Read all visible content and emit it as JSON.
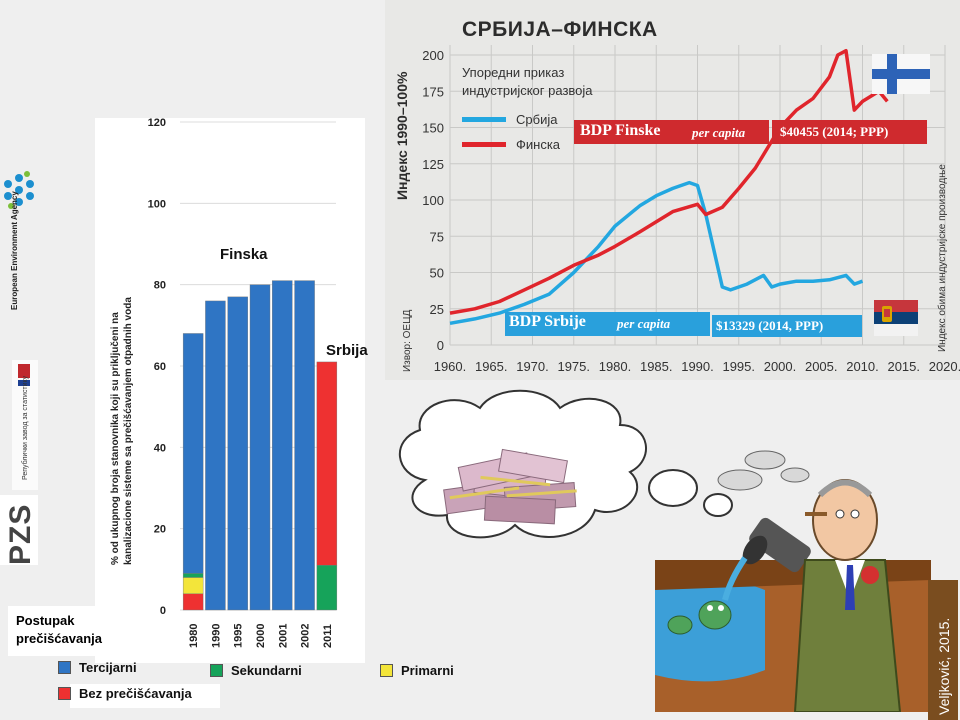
{
  "left_panel": {
    "eea_label": "European Environment Agency",
    "rzs_label": "Републички завод за статистику",
    "pzs_logo": "PZS"
  },
  "bar_chart_texts": {
    "finska_label": "Finska",
    "srbija_label": "Srbija",
    "legend_title": "Postupak prečišćavanja",
    "legend": {
      "tercijarni": "Tercijarni",
      "sekundarni": "Sekundarni",
      "primarni": "Primarni",
      "bez": "Bez prečišćavanja"
    }
  },
  "line_chart_texts": {
    "title": "СРБИЈА–ФИНСКА",
    "subtitle_line1": "Упоредни приказ",
    "subtitle_line2": "индустријског развоја",
    "legend_serbia": "Србија",
    "legend_finland": "Финска",
    "ylabel": "Индекс 1990–100%",
    "right_label": "Индекс обима индустријске производње",
    "source": "Извор: ОЕЦД",
    "bdp_finland_label": "BDP Finske",
    "bdp_finland_pc": "per capita",
    "bdp_finland_value": "$40455 (2014; PPP)",
    "bdp_serbia_label": "BDP Srbije",
    "bdp_serbia_pc": "per capita",
    "bdp_serbia_value": "$13329 (2014, PPP)"
  },
  "cartoon": {
    "credit": "Veljković, 2015."
  },
  "colors": {
    "tercijarni": "#2f75c4",
    "sekundarni": "#16a35a",
    "primarni": "#f3e53a",
    "bez": "#ee3131",
    "serbia_line": "#23a7e0",
    "finland_line": "#e0252c"
  },
  "chart_data": [
    {
      "type": "bar",
      "ylabel": "% od ukupnog broja stanovnika koji su priključeni na kanalizacione sisteme sa prečišćavanjem otpadnih voda",
      "ylim": [
        0,
        120
      ],
      "yticks": [
        0,
        20,
        40,
        60,
        80,
        100,
        120
      ],
      "categories": [
        "1980",
        "1990",
        "1995",
        "2000",
        "2001",
        "2002",
        "2011"
      ],
      "groups": [
        "Finska",
        "Finska",
        "Finska",
        "Finska",
        "Finska",
        "Finska",
        "Srbija"
      ],
      "series": [
        {
          "name": "Bez prečišćavanja",
          "values": [
            4,
            0,
            0,
            0,
            0,
            0,
            0
          ]
        },
        {
          "name": "Primarni",
          "values": [
            4,
            0,
            0,
            0,
            0,
            0,
            0
          ]
        },
        {
          "name": "Sekundarni",
          "values": [
            1,
            0,
            0,
            0,
            0,
            0,
            11
          ]
        },
        {
          "name": "Tercijarni",
          "values": [
            59,
            76,
            77,
            80,
            81,
            81,
            0
          ]
        },
        {
          "name": "Bez prečišćavanja",
          "values": [
            0,
            0,
            0,
            0,
            0,
            0,
            50
          ]
        }
      ]
    },
    {
      "type": "line",
      "title": "СРБИЈА–ФИНСКА",
      "ylabel": "Индекс 1990–100%",
      "xlim": [
        1960,
        2020
      ],
      "ylim": [
        0,
        200
      ],
      "xticks": [
        1960,
        1965,
        1970,
        1975,
        1980,
        1985,
        1990,
        1995,
        2000,
        2005,
        2010,
        2015,
        2020
      ],
      "xtick_labels": [
        "1960.",
        "1965.",
        "1970.",
        "1975.",
        "1980.",
        "1985.",
        "1990.",
        "1995.",
        "2000.",
        "2005.",
        "2010.",
        "2015.",
        "2020."
      ],
      "yticks": [
        0,
        25,
        50,
        75,
        100,
        125,
        150,
        175,
        200
      ],
      "series": [
        {
          "name": "Србија",
          "x": [
            1960,
            1963,
            1966,
            1969,
            1972,
            1975,
            1978,
            1980,
            1983,
            1985,
            1987,
            1989,
            1990,
            1991,
            1993,
            1994,
            1996,
            1998,
            1999,
            2000,
            2002,
            2004,
            2006,
            2008,
            2009,
            2010
          ],
          "y": [
            15,
            18,
            22,
            28,
            35,
            50,
            68,
            82,
            96,
            103,
            108,
            112,
            110,
            90,
            40,
            38,
            42,
            48,
            40,
            42,
            44,
            44,
            45,
            48,
            42,
            44
          ]
        },
        {
          "name": "Финска",
          "x": [
            1960,
            1963,
            1966,
            1969,
            1972,
            1975,
            1978,
            1980,
            1983,
            1985,
            1987,
            1990,
            1991,
            1993,
            1995,
            1997,
            2000,
            2002,
            2004,
            2006,
            2007,
            2008,
            2009,
            2010,
            2012,
            2013
          ],
          "y": [
            22,
            25,
            30,
            38,
            46,
            55,
            62,
            68,
            78,
            85,
            92,
            97,
            90,
            95,
            108,
            122,
            150,
            162,
            170,
            185,
            200,
            203,
            162,
            168,
            175,
            168
          ]
        }
      ]
    }
  ]
}
